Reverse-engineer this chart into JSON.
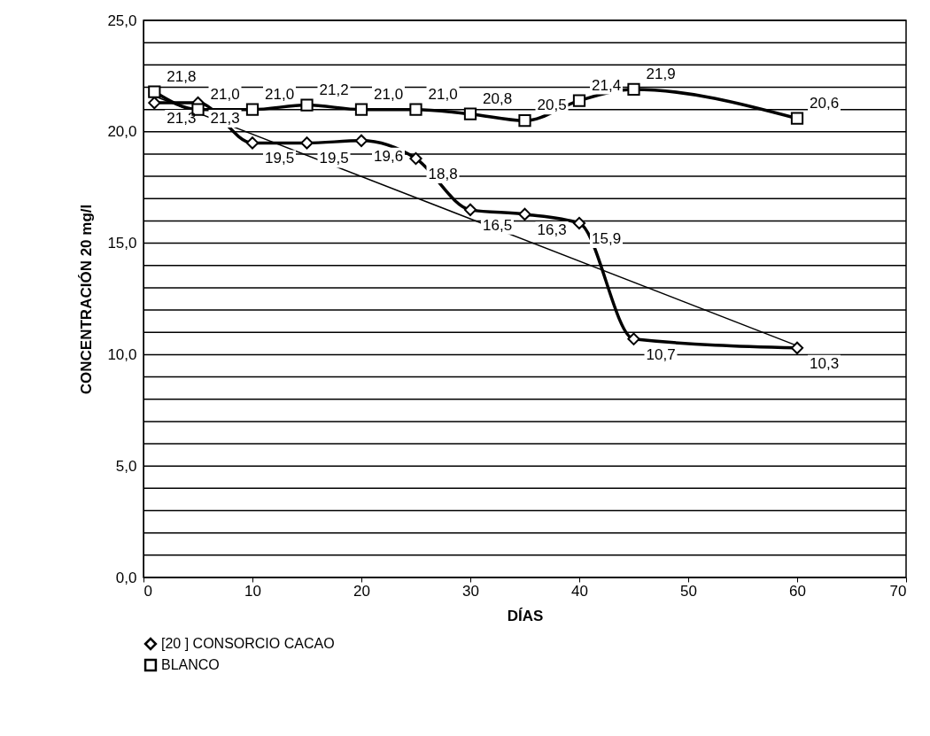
{
  "chart_data": {
    "type": "line",
    "xlabel": "DÍAS",
    "ylabel": "CONCENTRACIÓN 20 mg/l",
    "xlim": [
      0,
      70
    ],
    "xticks": [
      0,
      10,
      20,
      30,
      40,
      50,
      60,
      70
    ],
    "ylim": [
      0,
      25
    ],
    "yticks": [
      {
        "value": 0,
        "label": "0,0"
      },
      {
        "value": 1,
        "label": null
      },
      {
        "value": 2,
        "label": null
      },
      {
        "value": 3,
        "label": null
      },
      {
        "value": 4,
        "label": null
      },
      {
        "value": 5,
        "label": "5,0"
      },
      {
        "value": 6,
        "label": null
      },
      {
        "value": 7,
        "label": null
      },
      {
        "value": 8,
        "label": null
      },
      {
        "value": 9,
        "label": null
      },
      {
        "value": 10,
        "label": "10,0"
      },
      {
        "value": 11,
        "label": null
      },
      {
        "value": 12,
        "label": null
      },
      {
        "value": 13,
        "label": null
      },
      {
        "value": 14,
        "label": null
      },
      {
        "value": 15,
        "label": "15,0"
      },
      {
        "value": 16,
        "label": null
      },
      {
        "value": 17,
        "label": null
      },
      {
        "value": 18,
        "label": null
      },
      {
        "value": 19,
        "label": null
      },
      {
        "value": 20,
        "label": "20,0"
      },
      {
        "value": 21,
        "label": null
      },
      {
        "value": 22,
        "label": null
      },
      {
        "value": 23,
        "label": null
      },
      {
        "value": 24,
        "label": null
      },
      {
        "value": 25,
        "label": "25,0"
      }
    ],
    "grid": "y",
    "legend": "bottom",
    "series": [
      {
        "name": "[20 ] CONSORCIO CACAO",
        "color": "#000000",
        "marker": "diamond",
        "x": [
          1,
          5,
          10,
          15,
          20,
          25,
          30,
          35,
          40,
          45,
          60
        ],
        "values": [
          21.3,
          21.3,
          19.5,
          19.5,
          19.6,
          18.8,
          16.5,
          16.3,
          15.9,
          10.7,
          10.3
        ],
        "value_labels": [
          "21,3",
          "21,3",
          "19,5",
          "19,5",
          "19,6",
          "18,8",
          "16,5",
          "16,3",
          "15,9",
          "10,7",
          "10,3"
        ]
      },
      {
        "name": "BLANCO",
        "color": "#000000",
        "marker": "square",
        "x": [
          1,
          5,
          10,
          15,
          20,
          25,
          30,
          35,
          40,
          45,
          60
        ],
        "values": [
          21.8,
          21.0,
          21.0,
          21.2,
          21.0,
          21.0,
          20.8,
          20.5,
          21.4,
          21.9,
          20.6
        ],
        "value_labels": [
          "21,8",
          "21,0",
          "21,0",
          "21,2",
          "21,0",
          "21,0",
          "20,8",
          "20,5",
          "21,4",
          "21,9",
          "20,6"
        ]
      },
      {
        "type": "line",
        "color": "#000000",
        "marker": "none",
        "x": [
          1,
          60
        ],
        "values": [
          21.6,
          10.4
        ]
      }
    ]
  }
}
